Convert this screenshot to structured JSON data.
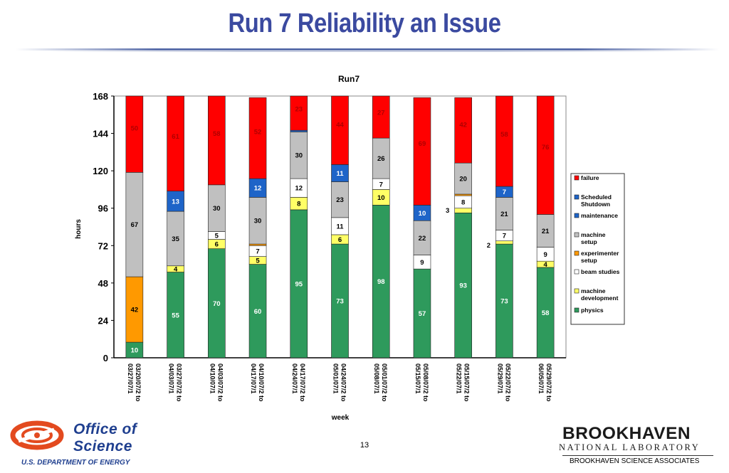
{
  "slide": {
    "title": "Run 7  Reliability an Issue",
    "page_number": "13"
  },
  "footer": {
    "office_line1": "Office of",
    "office_line2": "Science",
    "doe": "U.S. DEPARTMENT OF ENERGY",
    "bnl_name": "BROOKHAVEN",
    "bnl_sub": "NATIONAL LABORATORY",
    "bnl_assoc": "BROOKHAVEN SCIENCE ASSOCIATES"
  },
  "colors": {
    "physics": "#2e9a5c",
    "machine development": "#ffff66",
    "beam studies": "#ffffff",
    "experimenter setup": "#ff9900",
    "machine setup": "#c0c0c0",
    "maintenance": "#1e64c8",
    "Scheduled Shutdown": "#1e64c8",
    "failure": "#ff0000",
    "title": "#3b4aa0"
  },
  "chart_data": {
    "type": "bar",
    "stacked": true,
    "title": "Run7",
    "xlabel": "week",
    "ylabel": "hours",
    "ylim": [
      0,
      168
    ],
    "yticks": [
      0,
      24,
      48,
      72,
      96,
      120,
      144,
      168
    ],
    "legend_position": "right",
    "categories": [
      [
        "03/20/07/2 to",
        "03/27/07/1"
      ],
      [
        "03/27/07/2 to",
        "04/03/07/1"
      ],
      [
        "04/03/07/2 to",
        "04/10/07/1"
      ],
      [
        "04/10/07/2 to",
        "04/17/07/1"
      ],
      [
        "04/17/07/2  to",
        "04/24/07/1"
      ],
      [
        "04/24/07/2 to",
        "05/01/07/1"
      ],
      [
        "05/01/07/2 to",
        "05/08/07/1"
      ],
      [
        "05/08/07/2 to",
        "05/15/07/1"
      ],
      [
        "05/15/07/2 to",
        "05/22/07/1"
      ],
      [
        "05/22/07/2 to",
        "05/29/07/1"
      ],
      [
        "05/29/07/2 to",
        "06/05/07/1"
      ]
    ],
    "series": [
      {
        "name": "physics",
        "values": [
          10,
          55,
          70,
          60,
          95,
          73,
          98,
          57,
          93,
          73,
          58
        ],
        "labels": [
          "10",
          "55",
          "70",
          "60",
          "95",
          "73",
          "98",
          "57",
          "93",
          "73",
          "58"
        ]
      },
      {
        "name": "machine development",
        "values": [
          0,
          4,
          6,
          5,
          8,
          6,
          10,
          0,
          3,
          2,
          4
        ],
        "labels": [
          "",
          "4",
          "6",
          "5",
          "8",
          "6",
          "10",
          "",
          "",
          "",
          "4"
        ]
      },
      {
        "name": "beam studies",
        "values": [
          0,
          0,
          5,
          7,
          12,
          11,
          7,
          9,
          8,
          7,
          9
        ],
        "labels": [
          "",
          "",
          "5",
          "7",
          "12",
          "11",
          "7",
          "9",
          "8",
          "7",
          "9"
        ]
      },
      {
        "name": "experimenter setup",
        "values": [
          42,
          0,
          0,
          1,
          0,
          0,
          0,
          0,
          1,
          0,
          0
        ],
        "labels": [
          "42",
          "",
          "",
          "",
          "",
          "",
          "",
          "",
          "",
          "",
          ""
        ]
      },
      {
        "name": "machine setup",
        "values": [
          67,
          35,
          30,
          30,
          30,
          23,
          26,
          22,
          20,
          21,
          21
        ],
        "labels": [
          "67",
          "35",
          "30",
          "30",
          "30",
          "23",
          "26",
          "22",
          "20",
          "21",
          "21"
        ]
      },
      {
        "name": "Scheduled Shutdown",
        "values": [
          0,
          0,
          0,
          0,
          0,
          0,
          0,
          0,
          0,
          0,
          0
        ],
        "labels": [
          "",
          "",
          "",
          "",
          "",
          "",
          "",
          "",
          "",
          "",
          ""
        ]
      },
      {
        "name": "maintenance",
        "values": [
          0,
          13,
          0,
          12,
          1,
          11,
          0,
          10,
          0,
          7,
          0
        ],
        "labels": [
          "",
          "13",
          "",
          "12",
          "",
          "11",
          "",
          "10",
          "",
          "7",
          ""
        ]
      },
      {
        "name": "failure",
        "values": [
          50,
          61,
          58,
          52,
          23,
          44,
          27,
          69,
          42,
          58,
          76
        ],
        "labels": [
          "50",
          "61",
          "58",
          "52",
          "23",
          "44",
          "27",
          "69",
          "42",
          "58",
          "76"
        ]
      }
    ],
    "outside_labels": [
      {
        "category_index": 8,
        "text": "3"
      },
      {
        "category_index": 9,
        "text": "2"
      }
    ],
    "legend": [
      "failure",
      "Scheduled Shutdown",
      "maintenance",
      "machine setup",
      "experimenter setup",
      "beam studies",
      "machine development",
      "physics"
    ]
  }
}
